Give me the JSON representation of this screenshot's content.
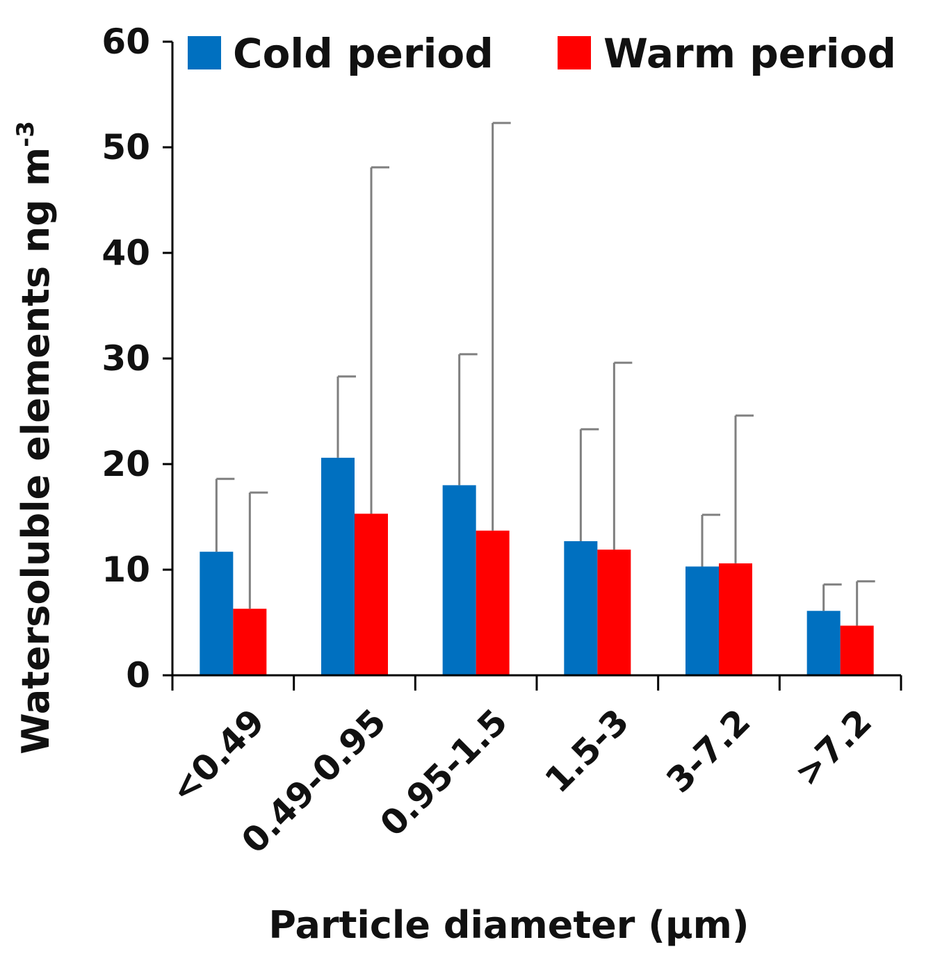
{
  "chart_data": {
    "type": "bar",
    "title": "",
    "xlabel": "Particle diameter (µm)",
    "ylabel": "Watersoluble  elements  ng m",
    "ylabel_superscript": "-3",
    "ylim": [
      0,
      60
    ],
    "yticks": [
      "0",
      "10",
      "20",
      "30",
      "40",
      "50",
      "60"
    ],
    "grid": false,
    "legend_position": "top",
    "categories": [
      "<0.49",
      "0.49-0.95",
      "0.95-1.5",
      "1.5-3",
      "3-7.2",
      ">7.2"
    ],
    "series": [
      {
        "name": "Cold period",
        "color": "#0070C0",
        "values": [
          11.7,
          20.6,
          18.0,
          12.7,
          10.3,
          6.1
        ],
        "error_upper": [
          18.6,
          28.3,
          30.4,
          23.3,
          15.2,
          8.6
        ]
      },
      {
        "name": "Warm period",
        "color": "#FF0000",
        "values": [
          6.3,
          15.3,
          13.7,
          11.9,
          10.6,
          4.7
        ],
        "error_upper": [
          17.3,
          48.1,
          52.3,
          29.6,
          24.6,
          8.9
        ]
      }
    ]
  }
}
